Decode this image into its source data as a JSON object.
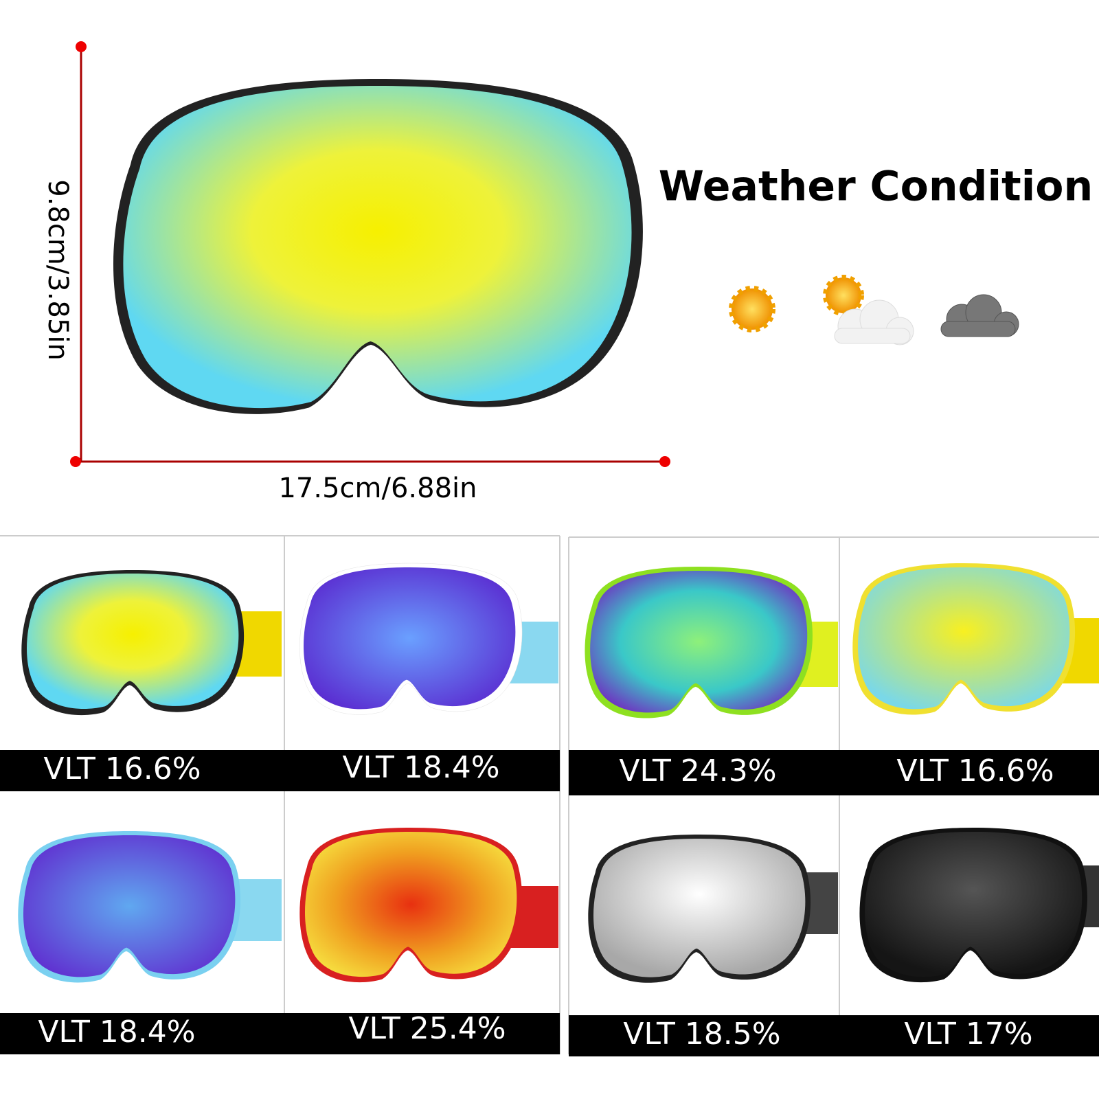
{
  "dimensions": {
    "height": "9.8cm/3.85in",
    "width": "17.5cm/6.88in"
  },
  "weather": {
    "title": "Weather Condition"
  },
  "products": [
    {
      "label": "VLT 16.6%"
    },
    {
      "label": "VLT 18.4%"
    },
    {
      "label": "VLT 24.3%"
    },
    {
      "label": "VLT 16.6%"
    },
    {
      "label": "VLT 18.4%"
    },
    {
      "label": "VLT 25.4%"
    },
    {
      "label": "VLT 18.5%"
    },
    {
      "label": "VLT 17%"
    }
  ]
}
